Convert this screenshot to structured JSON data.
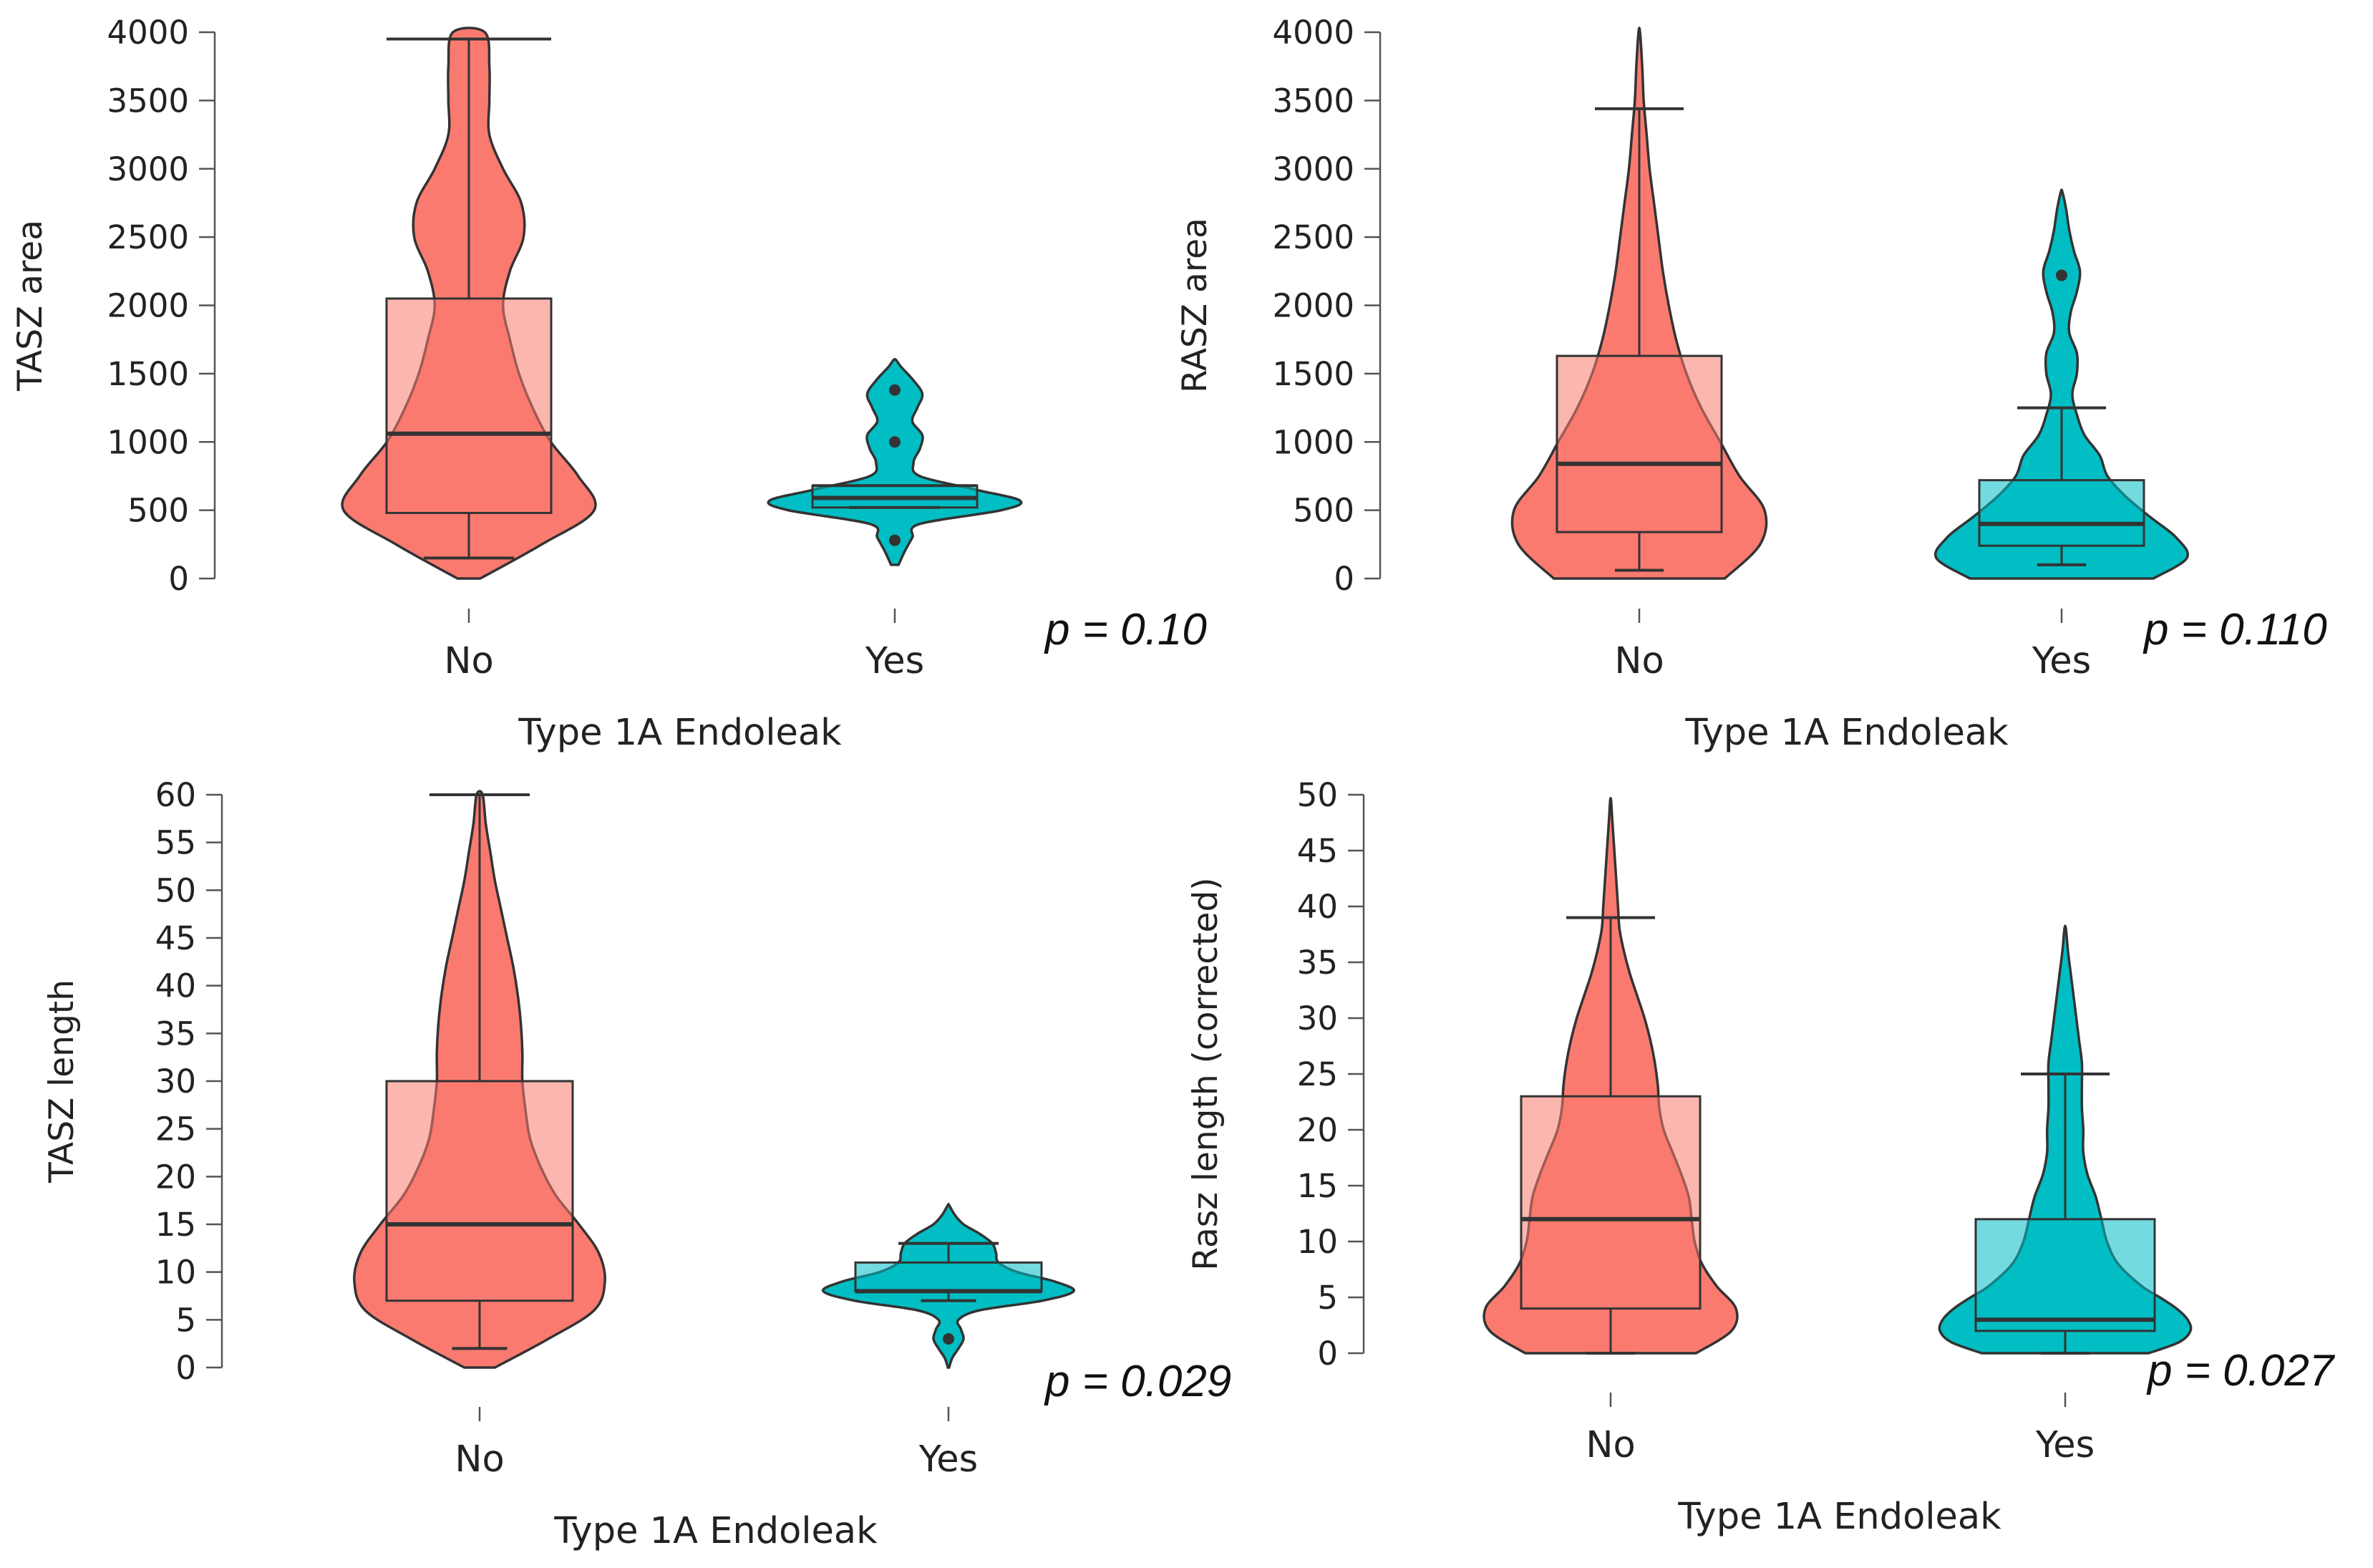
{
  "colors": {
    "no": "#fa7a70",
    "yes": "#00bec4",
    "line": "#333333",
    "axis": "#555555"
  },
  "chart_data": [
    {
      "type": "violin",
      "ylabel": "TASZ area",
      "xlabel": "Type 1A Endoleak",
      "categories": [
        "No",
        "Yes"
      ],
      "ylim": [
        0,
        4000
      ],
      "yticks": [
        0,
        500,
        1000,
        1500,
        2000,
        2500,
        3000,
        3500,
        4000
      ],
      "p_text": "p = 0.10",
      "groups": [
        {
          "name": "No",
          "color_key": "no",
          "min": 150,
          "q1": 480,
          "median": 1060,
          "q3": 2050,
          "max": 3950,
          "outliers": [],
          "density": [
            [
              0,
              0.05
            ],
            [
              250,
              0.32
            ],
            [
              500,
              0.55
            ],
            [
              750,
              0.48
            ],
            [
              1000,
              0.36
            ],
            [
              1250,
              0.28
            ],
            [
              1500,
              0.22
            ],
            [
              1750,
              0.18
            ],
            [
              2000,
              0.15
            ],
            [
              2250,
              0.18
            ],
            [
              2500,
              0.24
            ],
            [
              2750,
              0.23
            ],
            [
              3000,
              0.15
            ],
            [
              3250,
              0.09
            ],
            [
              3500,
              0.09
            ],
            [
              3750,
              0.09
            ],
            [
              4000,
              0.07
            ]
          ]
        },
        {
          "name": "Yes",
          "color_key": "yes",
          "min": 520,
          "q1": 520,
          "median": 590,
          "q3": 680,
          "max": 680,
          "outliers": [
            280,
            1000,
            1380
          ],
          "density": [
            [
              100,
              0.03
            ],
            [
              200,
              0.08
            ],
            [
              300,
              0.14
            ],
            [
              400,
              0.2
            ],
            [
              500,
              0.85
            ],
            [
              570,
              1.0
            ],
            [
              650,
              0.65
            ],
            [
              750,
              0.2
            ],
            [
              850,
              0.15
            ],
            [
              950,
              0.2
            ],
            [
              1050,
              0.22
            ],
            [
              1150,
              0.14
            ],
            [
              1250,
              0.18
            ],
            [
              1350,
              0.22
            ],
            [
              1450,
              0.15
            ],
            [
              1550,
              0.05
            ],
            [
              1600,
              0.01
            ]
          ]
        }
      ]
    },
    {
      "type": "violin",
      "ylabel": "RASZ area",
      "xlabel": "Type 1A Endoleak",
      "categories": [
        "No",
        "Yes"
      ],
      "ylim": [
        0,
        4000
      ],
      "yticks": [
        0,
        500,
        1000,
        1500,
        2000,
        2500,
        3000,
        3500,
        4000
      ],
      "p_text": "p = 0.110",
      "groups": [
        {
          "name": "No",
          "color_key": "no",
          "min": 60,
          "q1": 340,
          "median": 840,
          "q3": 1630,
          "max": 3440,
          "outliers": [],
          "density": [
            [
              0,
              0.58
            ],
            [
              250,
              0.82
            ],
            [
              500,
              0.85
            ],
            [
              750,
              0.68
            ],
            [
              1000,
              0.55
            ],
            [
              1250,
              0.42
            ],
            [
              1500,
              0.32
            ],
            [
              1750,
              0.25
            ],
            [
              2000,
              0.2
            ],
            [
              2250,
              0.16
            ],
            [
              2500,
              0.13
            ],
            [
              2750,
              0.1
            ],
            [
              3000,
              0.07
            ],
            [
              3250,
              0.05
            ],
            [
              3500,
              0.03
            ],
            [
              3750,
              0.02
            ],
            [
              4000,
              0.005
            ]
          ]
        },
        {
          "name": "Yes",
          "color_key": "yes",
          "min": 100,
          "q1": 240,
          "median": 400,
          "q3": 720,
          "max": 1250,
          "outliers": [
            2220
          ],
          "density": [
            [
              0,
              0.6
            ],
            [
              150,
              0.82
            ],
            [
              300,
              0.75
            ],
            [
              450,
              0.58
            ],
            [
              600,
              0.42
            ],
            [
              750,
              0.3
            ],
            [
              900,
              0.25
            ],
            [
              1050,
              0.15
            ],
            [
              1200,
              0.1
            ],
            [
              1350,
              0.07
            ],
            [
              1500,
              0.1
            ],
            [
              1650,
              0.1
            ],
            [
              1800,
              0.05
            ],
            [
              1950,
              0.06
            ],
            [
              2100,
              0.1
            ],
            [
              2250,
              0.12
            ],
            [
              2400,
              0.08
            ],
            [
              2550,
              0.05
            ],
            [
              2700,
              0.03
            ],
            [
              2830,
              0.005
            ]
          ]
        }
      ]
    },
    {
      "type": "violin",
      "ylabel": "TASZ length",
      "xlabel": "Type 1A Endoleak",
      "categories": [
        "No",
        "Yes"
      ],
      "ylim": [
        0,
        60
      ],
      "yticks": [
        0,
        5,
        10,
        15,
        20,
        25,
        30,
        35,
        40,
        45,
        50,
        55,
        60
      ],
      "p_text": "p = 0.029",
      "groups": [
        {
          "name": "No",
          "color_key": "no",
          "min": 2,
          "q1": 7,
          "median": 15,
          "q3": 30,
          "max": 60,
          "outliers": [],
          "density": [
            [
              0,
              0.1
            ],
            [
              3,
              0.45
            ],
            [
              6,
              0.75
            ],
            [
              9,
              0.82
            ],
            [
              12,
              0.78
            ],
            [
              15,
              0.65
            ],
            [
              18,
              0.5
            ],
            [
              21,
              0.4
            ],
            [
              24,
              0.33
            ],
            [
              27,
              0.3
            ],
            [
              30,
              0.28
            ],
            [
              33,
              0.28
            ],
            [
              36,
              0.27
            ],
            [
              39,
              0.25
            ],
            [
              42,
              0.22
            ],
            [
              45,
              0.18
            ],
            [
              48,
              0.14
            ],
            [
              51,
              0.1
            ],
            [
              54,
              0.07
            ],
            [
              57,
              0.04
            ],
            [
              60,
              0.02
            ]
          ]
        },
        {
          "name": "Yes",
          "color_key": "yes",
          "min": 7,
          "q1": 8,
          "median": 8,
          "q3": 11,
          "max": 13,
          "outliers": [
            3
          ],
          "density": [
            [
              0,
              0.005
            ],
            [
              1,
              0.03
            ],
            [
              2,
              0.08
            ],
            [
              3,
              0.12
            ],
            [
              4,
              0.1
            ],
            [
              5,
              0.08
            ],
            [
              6,
              0.25
            ],
            [
              7,
              0.75
            ],
            [
              8,
              1.0
            ],
            [
              9,
              0.85
            ],
            [
              10,
              0.55
            ],
            [
              11,
              0.4
            ],
            [
              12,
              0.38
            ],
            [
              13,
              0.35
            ],
            [
              14,
              0.25
            ],
            [
              15,
              0.12
            ],
            [
              16,
              0.05
            ],
            [
              17,
              0.005
            ]
          ]
        }
      ]
    },
    {
      "type": "violin",
      "ylabel": "Rasz length (corrected)",
      "xlabel": "Type 1A Endoleak",
      "categories": [
        "No",
        "Yes"
      ],
      "ylim": [
        0,
        50
      ],
      "yticks": [
        0,
        5,
        10,
        15,
        20,
        25,
        30,
        35,
        40,
        45,
        50
      ],
      "p_text": "p = 0.027",
      "groups": [
        {
          "name": "No",
          "color_key": "no",
          "min": 0,
          "q1": 4,
          "median": 12,
          "q3": 23,
          "max": 39,
          "outliers": [],
          "density": [
            [
              0,
              0.58
            ],
            [
              2,
              0.82
            ],
            [
              4,
              0.85
            ],
            [
              6,
              0.72
            ],
            [
              8,
              0.62
            ],
            [
              10,
              0.57
            ],
            [
              12,
              0.55
            ],
            [
              14,
              0.53
            ],
            [
              16,
              0.48
            ],
            [
              18,
              0.42
            ],
            [
              20,
              0.36
            ],
            [
              22,
              0.33
            ],
            [
              24,
              0.32
            ],
            [
              26,
              0.3
            ],
            [
              28,
              0.27
            ],
            [
              30,
              0.23
            ],
            [
              32,
              0.18
            ],
            [
              34,
              0.13
            ],
            [
              36,
              0.09
            ],
            [
              38,
              0.06
            ],
            [
              40,
              0.05
            ],
            [
              42,
              0.04
            ],
            [
              44,
              0.03
            ],
            [
              46,
              0.02
            ],
            [
              48,
              0.01
            ],
            [
              49.5,
              0.003
            ]
          ]
        },
        {
          "name": "Yes",
          "color_key": "yes",
          "min": 0,
          "q1": 2,
          "median": 3,
          "q3": 12,
          "max": 25,
          "outliers": [],
          "density": [
            [
              0,
              0.6
            ],
            [
              1,
              0.82
            ],
            [
              2,
              0.9
            ],
            [
              3,
              0.88
            ],
            [
              4,
              0.8
            ],
            [
              5,
              0.68
            ],
            [
              6,
              0.55
            ],
            [
              8,
              0.38
            ],
            [
              10,
              0.3
            ],
            [
              12,
              0.26
            ],
            [
              14,
              0.22
            ],
            [
              16,
              0.16
            ],
            [
              18,
              0.13
            ],
            [
              20,
              0.13
            ],
            [
              22,
              0.12
            ],
            [
              24,
              0.12
            ],
            [
              26,
              0.12
            ],
            [
              28,
              0.1
            ],
            [
              30,
              0.08
            ],
            [
              32,
              0.06
            ],
            [
              34,
              0.04
            ],
            [
              36,
              0.02
            ],
            [
              38,
              0.005
            ]
          ]
        }
      ]
    }
  ]
}
